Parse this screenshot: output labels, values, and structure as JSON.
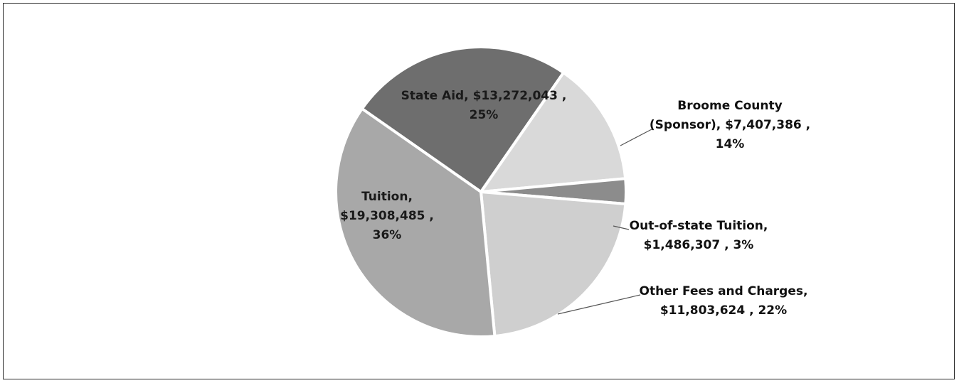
{
  "chart_data": {
    "type": "pie",
    "title": "",
    "slices": [
      {
        "name": "State Aid",
        "value": 13272043,
        "value_label": "$13,272,043",
        "percent": 25,
        "color": "#6e6e6e",
        "label_lines": [
          "State Aid,  $13,272,043 ,",
          "25%"
        ]
      },
      {
        "name": "Broome County (Sponsor)",
        "value": 7407386,
        "value_label": "$7,407,386",
        "percent": 14,
        "color": "#d9d9d9",
        "label_lines": [
          "Broome County",
          "(Sponsor),  $7,407,386 ,",
          "14%"
        ]
      },
      {
        "name": "Out-of-state Tuition",
        "value": 1486307,
        "value_label": "$1,486,307",
        "percent": 3,
        "color": "#8c8c8c",
        "label_lines": [
          "Out-of-state Tuition,",
          "$1,486,307 , 3%"
        ]
      },
      {
        "name": "Other Fees and Charges",
        "value": 11803624,
        "value_label": "$11,803,624",
        "percent": 22,
        "color": "#cfcfcf",
        "label_lines": [
          "Other Fees and Charges,",
          "$11,803,624 , 22%"
        ]
      },
      {
        "name": "Tuition",
        "value": 19308485,
        "value_label": "$19,308,485",
        "percent": 36,
        "color": "#a8a8a8",
        "label_lines": [
          "Tuition,",
          "$19,308,485 ,",
          "36%"
        ]
      }
    ],
    "legend": "none",
    "data_labels": true
  }
}
